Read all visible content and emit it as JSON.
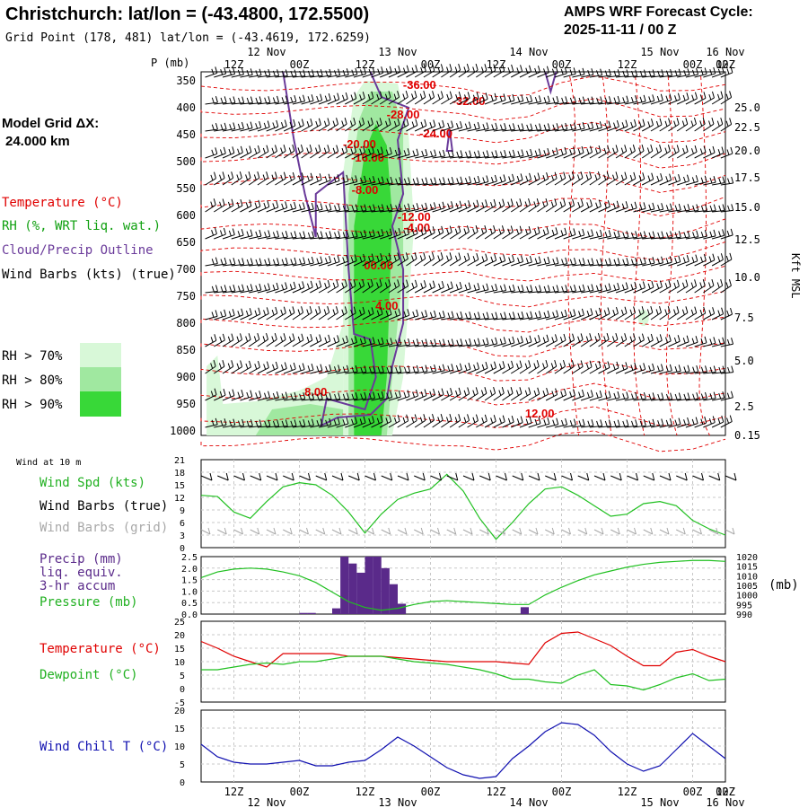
{
  "header": {
    "title": "Christchurch:  lat/lon = (-43.4800, 172.5500)",
    "subtitle": "Grid Point (178, 481) lat/lon = (-43.4619, 172.6259)",
    "cycle_line1": "AMPS WRF Forecast Cycle:",
    "cycle_line2": "2025-11-11 / 00  Z"
  },
  "legend": {
    "model_grid_line1": "Model Grid ΔX:",
    "model_grid_line2": "24.000 km",
    "temperature": "Temperature (°C)",
    "rh": "RH (%, WRT liq. wat.)",
    "cloud": "Cloud/Precip Outline",
    "wind_barbs": "Wind Barbs (kts) (true)",
    "rh70": "RH > 70%",
    "rh80": "RH > 80%",
    "rh90": "RH > 90%",
    "rh_colors": [
      "#d8f8d8",
      "#a0e8a0",
      "#38d838"
    ]
  },
  "colors": {
    "temp": "#e00000",
    "cloud": "#6a3a9a",
    "rh_green": "#10c010",
    "precip": "#5a2a8a",
    "dewpoint": "#20c020",
    "windchill": "#1010b0",
    "barb": "#000000",
    "barb_grid": "#a8a8a8"
  },
  "time_axis": {
    "top_dates": [
      "12 Nov",
      "13 Nov",
      "14 Nov",
      "15 Nov",
      "16 Nov"
    ],
    "top_hours": [
      "12Z",
      "00Z",
      "12Z",
      "00Z",
      "12Z",
      "00Z",
      "12Z",
      "00Z",
      "12Z",
      "00Z"
    ],
    "bottom_hours": [
      "12Z",
      "00Z",
      "12Z",
      "00Z",
      "12Z",
      "00Z",
      "12Z",
      "00Z",
      "12Z",
      "00Z"
    ],
    "bottom_dates": [
      "12 Nov",
      "13 Nov",
      "14 Nov",
      "15 Nov",
      "16 Nov"
    ]
  },
  "chart_data": [
    {
      "type": "heatmap",
      "name": "time-height cross section",
      "ylabel_left": "P (mb)",
      "ylabel_right": "Kft MSL",
      "pressure_levels": [
        350,
        400,
        450,
        500,
        550,
        600,
        650,
        700,
        750,
        800,
        850,
        900,
        950,
        1000
      ],
      "height_ticks": [
        "25.0",
        "22.5",
        "20.0",
        "17.5",
        "15.0",
        "12.5",
        "10.0",
        "7.5",
        "5.0",
        "2.5",
        "0.15"
      ],
      "temperature_labels": [
        "-36.00",
        "-32.00",
        "-28.00",
        "-24.00",
        "-20.00",
        "-16.00",
        "-12.00",
        "-8.00",
        "-4.00",
        "00.00",
        "4.00",
        "8.00",
        "12.00"
      ]
    },
    {
      "type": "line",
      "name": "Wind at 10 m",
      "title": "Wind at 10 m",
      "series_label": "Wind Spd (kts)",
      "barbs_true_label": "Wind Barbs (true)",
      "barbs_grid_label": "Wind Barbs (grid)",
      "y_ticks": [
        0,
        3,
        6,
        9,
        12,
        15,
        18,
        21
      ],
      "ylim": [
        0,
        21
      ],
      "x_hours": [
        0,
        6,
        12,
        18,
        24,
        30,
        36,
        42,
        48,
        54,
        60,
        66,
        72,
        78,
        84,
        90,
        96,
        102,
        108,
        114,
        120,
        126,
        132,
        138,
        144,
        150,
        156,
        162,
        168,
        174,
        180,
        186,
        192
      ],
      "values": [
        12.5,
        12.2,
        8.5,
        7.0,
        11.0,
        14.5,
        15.5,
        15.0,
        12.5,
        8.5,
        3.5,
        8.0,
        11.5,
        13.0,
        14.0,
        17.5,
        13.5,
        7.0,
        2.0,
        6.0,
        10.5,
        14.0,
        14.5,
        12.5,
        10.0,
        7.5,
        8.0,
        10.5,
        11.0,
        10.0,
        6.5,
        4.5,
        3.0
      ]
    },
    {
      "type": "bar",
      "name": "Precip and Pressure",
      "precip_label_1": "Precip (mm)",
      "precip_label_2": "liq. equiv.",
      "precip_label_3": "3-hr accum",
      "pressure_label": "Pressure (mb)",
      "pressure_unit": "(mb)",
      "left_ticks": [
        "0.0",
        "0.5",
        "1.0",
        "1.5",
        "2.0",
        "2.5"
      ],
      "right_ticks": [
        "990",
        "995",
        "1000",
        "1005",
        "1010",
        "1015",
        "1020"
      ],
      "precip_ylim": [
        0,
        2.5
      ],
      "precip_bars": [
        {
          "hour": 37.5,
          "value": 0.05
        },
        {
          "hour": 40.5,
          "value": 0.05
        },
        {
          "hour": 49.5,
          "value": 0.25
        },
        {
          "hour": 52.5,
          "value": 2.5
        },
        {
          "hour": 55.5,
          "value": 2.2
        },
        {
          "hour": 58.5,
          "value": 1.8
        },
        {
          "hour": 61.5,
          "value": 2.5
        },
        {
          "hour": 64.5,
          "value": 2.5
        },
        {
          "hour": 67.5,
          "value": 2.0
        },
        {
          "hour": 70.5,
          "value": 1.3
        },
        {
          "hour": 73.5,
          "value": 0.45
        },
        {
          "hour": 118.5,
          "value": 0.3
        }
      ],
      "pressure_ylim": [
        990,
        1020
      ],
      "pressure_x_hours": [
        0,
        6,
        12,
        18,
        24,
        30,
        36,
        42,
        48,
        54,
        60,
        66,
        72,
        78,
        84,
        90,
        96,
        102,
        108,
        114,
        120,
        126,
        132,
        138,
        144,
        150,
        156,
        162,
        168,
        174,
        180,
        186,
        192
      ],
      "pressure_values": [
        1009,
        1012,
        1013.5,
        1014,
        1013.5,
        1012,
        1010,
        1006.5,
        1001.5,
        996.5,
        993.5,
        992,
        993,
        995,
        996.5,
        997,
        996.5,
        996,
        995.5,
        995,
        995,
        1000,
        1004,
        1007.5,
        1010.5,
        1012.5,
        1014.5,
        1016,
        1017,
        1017.5,
        1018,
        1018,
        1017.5
      ]
    },
    {
      "type": "line",
      "name": "Temperature and Dewpoint",
      "y_ticks": [
        -5,
        0,
        5,
        10,
        15,
        20,
        25
      ],
      "ylim": [
        -5,
        25
      ],
      "x_hours": [
        0,
        6,
        12,
        18,
        24,
        30,
        36,
        42,
        48,
        54,
        60,
        66,
        72,
        78,
        84,
        90,
        96,
        102,
        108,
        114,
        120,
        126,
        132,
        138,
        144,
        150,
        156,
        162,
        168,
        174,
        180,
        186,
        192
      ],
      "series": [
        {
          "name": "Temperature (°C)",
          "values": [
            17.5,
            15.0,
            12.0,
            10.0,
            8.0,
            13.0,
            13.0,
            13.0,
            13.0,
            12.0,
            12.0,
            12.0,
            11.5,
            11.0,
            10.5,
            10.0,
            10.0,
            10.0,
            10.0,
            9.5,
            9.0,
            17.0,
            20.5,
            21.0,
            18.5,
            16.0,
            12.0,
            8.5,
            8.5,
            13.5,
            14.5,
            12.0,
            10.0
          ]
        },
        {
          "name": "Dewpoint (°C)",
          "values": [
            7.0,
            7.0,
            8.0,
            9.0,
            9.5,
            9.0,
            10.0,
            10.0,
            11.0,
            12.0,
            12.0,
            12.0,
            11.0,
            10.0,
            9.5,
            9.0,
            8.0,
            7.0,
            5.5,
            3.5,
            3.5,
            2.5,
            2.0,
            5.0,
            7.0,
            1.5,
            1.0,
            -0.5,
            1.5,
            4.0,
            5.5,
            3.0,
            3.5
          ]
        }
      ]
    },
    {
      "type": "line",
      "name": "Wind Chill",
      "series_label": "Wind Chill T (°C)",
      "y_ticks": [
        0,
        5,
        10,
        15,
        20
      ],
      "ylim": [
        0,
        20
      ],
      "x_hours": [
        0,
        6,
        12,
        18,
        24,
        30,
        36,
        42,
        48,
        54,
        60,
        66,
        72,
        78,
        84,
        90,
        96,
        102,
        108,
        114,
        120,
        126,
        132,
        138,
        144,
        150,
        156,
        162,
        168,
        174,
        180,
        186,
        192
      ],
      "values": [
        10.5,
        7.0,
        5.5,
        5.0,
        5.0,
        5.5,
        6.0,
        4.5,
        4.5,
        5.5,
        6.0,
        9.0,
        12.5,
        10.0,
        7.0,
        4.0,
        2.0,
        1.0,
        1.5,
        6.5,
        10.0,
        14.0,
        16.5,
        16.0,
        13.0,
        8.5,
        5.0,
        3.0,
        4.5,
        9.0,
        13.5,
        10.0,
        6.5
      ]
    }
  ]
}
